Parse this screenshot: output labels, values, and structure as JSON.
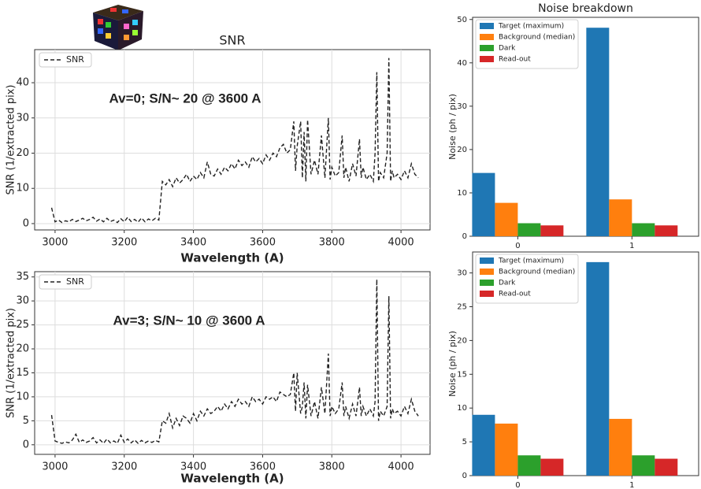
{
  "chart_data": [
    {
      "type": "line",
      "title": "SNR",
      "xlabel": "Wavelength (A)",
      "ylabel": "SNR (1/extracted pix)",
      "annotation": "Av=0;  S/N~ 20 @ 3600 A",
      "x": [
        2990,
        3000,
        3010,
        3020,
        3030,
        3040,
        3050,
        3060,
        3070,
        3080,
        3090,
        3100,
        3110,
        3120,
        3130,
        3140,
        3150,
        3160,
        3170,
        3180,
        3190,
        3200,
        3210,
        3220,
        3230,
        3240,
        3250,
        3260,
        3270,
        3280,
        3290,
        3300,
        3310,
        3320,
        3330,
        3340,
        3350,
        3360,
        3370,
        3380,
        3390,
        3400,
        3410,
        3420,
        3430,
        3440,
        3450,
        3460,
        3470,
        3480,
        3490,
        3500,
        3510,
        3520,
        3530,
        3540,
        3550,
        3560,
        3570,
        3580,
        3590,
        3600,
        3610,
        3620,
        3630,
        3640,
        3650,
        3660,
        3670,
        3680,
        3690,
        3695,
        3700,
        3710,
        3715,
        3720,
        3725,
        3730,
        3740,
        3750,
        3760,
        3770,
        3780,
        3790,
        3795,
        3800,
        3810,
        3820,
        3830,
        3835,
        3840,
        3850,
        3860,
        3870,
        3880,
        3885,
        3890,
        3900,
        3910,
        3920,
        3925,
        3930,
        3935,
        3940,
        3950,
        3960,
        3965,
        3970,
        3975,
        3980,
        3990,
        4000,
        4010,
        4020,
        4030,
        4040,
        4050
      ],
      "series": [
        {
          "name": "SNR",
          "color": "#222222",
          "values": [
            4.5,
            0.5,
            1.0,
            0.3,
            0.8,
            0.5,
            1.2,
            0.6,
            1.0,
            1.5,
            0.8,
            1.2,
            1.8,
            0.7,
            1.3,
            0.5,
            1.5,
            0.6,
            1.0,
            0.3,
            1.4,
            0.5,
            1.8,
            0.6,
            1.2,
            0.4,
            1.6,
            0.5,
            1.3,
            0.8,
            1.5,
            1.0,
            12.0,
            11.0,
            12.5,
            10.5,
            13.0,
            11.5,
            12.5,
            14.0,
            12.0,
            13.5,
            12.5,
            14.5,
            13.0,
            17.5,
            14.0,
            13.5,
            15.5,
            14.0,
            16.0,
            15.0,
            17.0,
            15.5,
            18.0,
            16.5,
            17.5,
            16.0,
            19.0,
            17.5,
            18.5,
            17.0,
            19.5,
            18.0,
            20.0,
            19.0,
            21.5,
            22.5,
            20.0,
            21.0,
            29.0,
            15.0,
            22.0,
            29.0,
            13.0,
            26.0,
            12.0,
            29.5,
            14.0,
            18.0,
            14.0,
            25.0,
            13.0,
            30.0,
            12.5,
            16.0,
            13.5,
            14.5,
            25.0,
            13.0,
            16.0,
            12.0,
            17.0,
            13.5,
            24.0,
            13.0,
            16.0,
            12.5,
            14.0,
            12.0,
            20.0,
            43.0,
            12.0,
            14.5,
            13.0,
            20.0,
            47.0,
            12.0,
            15.0,
            13.0,
            14.0,
            12.5,
            15.0,
            13.0,
            17.0,
            14.0,
            13.0
          ]
        }
      ],
      "xlim": [
        2941,
        4084
      ],
      "xticks": [
        3000,
        3200,
        3400,
        3600,
        3800,
        4000
      ],
      "ylim": [
        -1.8,
        49.4
      ],
      "yticks": [
        0,
        10,
        20,
        30,
        40
      ],
      "grid": true,
      "legend": "upper left",
      "line_style": "dashed"
    },
    {
      "type": "line",
      "xlabel": "Wavelength (A)",
      "ylabel": "SNR (1/extracted pix)",
      "annotation": "Av=3;  S/N~ 10 @ 3600 A",
      "x": [
        2990,
        3000,
        3010,
        3020,
        3030,
        3040,
        3050,
        3060,
        3070,
        3080,
        3090,
        3100,
        3110,
        3120,
        3130,
        3140,
        3150,
        3160,
        3170,
        3180,
        3190,
        3200,
        3210,
        3220,
        3230,
        3240,
        3250,
        3260,
        3270,
        3280,
        3290,
        3300,
        3310,
        3320,
        3330,
        3340,
        3350,
        3360,
        3370,
        3380,
        3390,
        3400,
        3410,
        3420,
        3430,
        3440,
        3450,
        3460,
        3470,
        3480,
        3490,
        3500,
        3510,
        3520,
        3530,
        3540,
        3550,
        3560,
        3570,
        3580,
        3590,
        3600,
        3610,
        3620,
        3630,
        3640,
        3650,
        3660,
        3670,
        3680,
        3690,
        3695,
        3700,
        3710,
        3715,
        3720,
        3725,
        3730,
        3740,
        3750,
        3760,
        3770,
        3780,
        3790,
        3795,
        3800,
        3810,
        3820,
        3830,
        3835,
        3840,
        3850,
        3860,
        3870,
        3880,
        3885,
        3890,
        3900,
        3910,
        3920,
        3925,
        3930,
        3935,
        3940,
        3950,
        3960,
        3965,
        3970,
        3975,
        3980,
        3990,
        4000,
        4010,
        4020,
        4030,
        4040,
        4050
      ],
      "series": [
        {
          "name": "SNR",
          "color": "#222222",
          "values": [
            6.2,
            0.8,
            0.5,
            0.3,
            0.6,
            0.4,
            1.0,
            2.2,
            0.5,
            1.0,
            0.5,
            0.8,
            1.5,
            0.4,
            1.0,
            0.3,
            1.2,
            0.4,
            0.8,
            0.3,
            2.0,
            0.5,
            1.2,
            0.4,
            1.0,
            0.3,
            0.9,
            0.4,
            0.8,
            0.5,
            0.9,
            0.6,
            5.0,
            4.5,
            6.5,
            3.5,
            5.5,
            4.0,
            6.0,
            5.5,
            4.5,
            6.5,
            5.0,
            7.0,
            6.0,
            7.5,
            6.5,
            7.0,
            8.0,
            7.0,
            8.5,
            7.5,
            9.0,
            8.0,
            9.5,
            8.5,
            9.0,
            8.0,
            10.0,
            9.0,
            9.5,
            8.5,
            10.0,
            9.5,
            10.0,
            9.0,
            11.0,
            10.5,
            10.0,
            10.5,
            15.0,
            7.0,
            15.0,
            6.5,
            8.0,
            13.0,
            5.5,
            12.5,
            6.0,
            9.0,
            5.5,
            12.0,
            6.5,
            19.0,
            6.0,
            8.0,
            6.5,
            7.5,
            13.0,
            6.0,
            8.0,
            5.5,
            8.5,
            6.0,
            12.0,
            6.0,
            8.0,
            6.0,
            7.5,
            6.0,
            9.0,
            34.5,
            5.0,
            7.0,
            6.0,
            8.0,
            31.0,
            5.5,
            7.5,
            6.5,
            7.0,
            6.0,
            8.0,
            6.5,
            9.5,
            7.0,
            6.0
          ]
        }
      ],
      "xlim": [
        2941,
        4084
      ],
      "xticks": [
        3000,
        3200,
        3400,
        3600,
        3800,
        4000
      ],
      "ylim": [
        -2,
        36.1
      ],
      "yticks": [
        0,
        5,
        10,
        15,
        20,
        25,
        30,
        35
      ],
      "grid": true,
      "legend": "upper left",
      "line_style": "dashed"
    },
    {
      "type": "bar",
      "title": "Noise breakdown",
      "ylabel": "Noise (ph / pix)",
      "categories": [
        "0",
        "1"
      ],
      "series": [
        {
          "name": "Target (maximum)",
          "color": "#1f77b4",
          "values": [
            14.6,
            48.1
          ]
        },
        {
          "name": "Background (median)",
          "color": "#ff7f0e",
          "values": [
            7.7,
            8.5
          ]
        },
        {
          "name": "Dark",
          "color": "#2ca02c",
          "values": [
            3.0,
            3.0
          ]
        },
        {
          "name": "Read-out",
          "color": "#d62728",
          "values": [
            2.5,
            2.5
          ]
        }
      ],
      "ylim": [
        0,
        50.5
      ],
      "yticks": [
        0,
        10,
        20,
        30,
        40,
        50
      ],
      "grid": false,
      "legend": "upper left"
    },
    {
      "type": "bar",
      "ylabel": "Noise (ph / pix)",
      "categories": [
        "0",
        "1"
      ],
      "series": [
        {
          "name": "Target (maximum)",
          "color": "#1f77b4",
          "values": [
            9.0,
            31.6
          ]
        },
        {
          "name": "Background (median)",
          "color": "#ff7f0e",
          "values": [
            7.7,
            8.4
          ]
        },
        {
          "name": "Dark",
          "color": "#2ca02c",
          "values": [
            3.0,
            3.0
          ]
        },
        {
          "name": "Read-out",
          "color": "#d62728",
          "values": [
            2.5,
            2.5
          ]
        }
      ],
      "ylim": [
        0,
        33.1
      ],
      "yticks": [
        0,
        5,
        10,
        15,
        20,
        25,
        30
      ],
      "grid": false,
      "legend": "upper left"
    }
  ]
}
